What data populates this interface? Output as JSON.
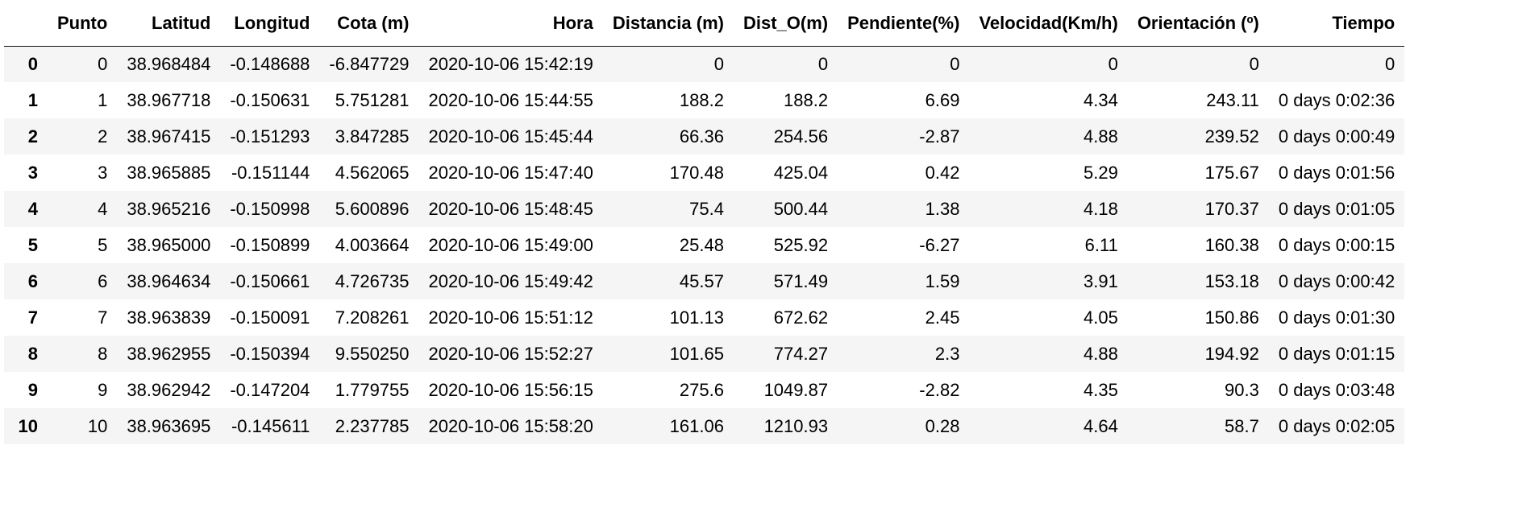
{
  "table": {
    "columns": [
      "",
      "Punto",
      "Latitud",
      "Longitud",
      "Cota (m)",
      "Hora",
      "Distancia (m)",
      "Dist_O(m)",
      "Pendiente(%)",
      "Velocidad(Km/h)",
      "Orientación (º)",
      "Tiempo"
    ],
    "rows": [
      [
        "0",
        "0",
        "38.968484",
        "-0.148688",
        "-6.847729",
        "2020-10-06 15:42:19",
        "0",
        "0",
        "0",
        "0",
        "0",
        "0"
      ],
      [
        "1",
        "1",
        "38.967718",
        "-0.150631",
        "5.751281",
        "2020-10-06 15:44:55",
        "188.2",
        "188.2",
        "6.69",
        "4.34",
        "243.11",
        "0 days 0:02:36"
      ],
      [
        "2",
        "2",
        "38.967415",
        "-0.151293",
        "3.847285",
        "2020-10-06 15:45:44",
        "66.36",
        "254.56",
        "-2.87",
        "4.88",
        "239.52",
        "0 days 0:00:49"
      ],
      [
        "3",
        "3",
        "38.965885",
        "-0.151144",
        "4.562065",
        "2020-10-06 15:47:40",
        "170.48",
        "425.04",
        "0.42",
        "5.29",
        "175.67",
        "0 days 0:01:56"
      ],
      [
        "4",
        "4",
        "38.965216",
        "-0.150998",
        "5.600896",
        "2020-10-06 15:48:45",
        "75.4",
        "500.44",
        "1.38",
        "4.18",
        "170.37",
        "0 days 0:01:05"
      ],
      [
        "5",
        "5",
        "38.965000",
        "-0.150899",
        "4.003664",
        "2020-10-06 15:49:00",
        "25.48",
        "525.92",
        "-6.27",
        "6.11",
        "160.38",
        "0 days 0:00:15"
      ],
      [
        "6",
        "6",
        "38.964634",
        "-0.150661",
        "4.726735",
        "2020-10-06 15:49:42",
        "45.57",
        "571.49",
        "1.59",
        "3.91",
        "153.18",
        "0 days 0:00:42"
      ],
      [
        "7",
        "7",
        "38.963839",
        "-0.150091",
        "7.208261",
        "2020-10-06 15:51:12",
        "101.13",
        "672.62",
        "2.45",
        "4.05",
        "150.86",
        "0 days 0:01:30"
      ],
      [
        "8",
        "8",
        "38.962955",
        "-0.150394",
        "9.550250",
        "2020-10-06 15:52:27",
        "101.65",
        "774.27",
        "2.3",
        "4.88",
        "194.92",
        "0 days 0:01:15"
      ],
      [
        "9",
        "9",
        "38.962942",
        "-0.147204",
        "1.779755",
        "2020-10-06 15:56:15",
        "275.6",
        "1049.87",
        "-2.82",
        "4.35",
        "90.3",
        "0 days 0:03:48"
      ],
      [
        "10",
        "10",
        "38.963695",
        "-0.145611",
        "2.237785",
        "2020-10-06 15:58:20",
        "161.06",
        "1210.93",
        "0.28",
        "4.64",
        "58.7",
        "0 days 0:02:05"
      ]
    ]
  },
  "colors": {
    "row_stripe": "#f5f5f5",
    "background": "#ffffff",
    "text": "#000000"
  }
}
